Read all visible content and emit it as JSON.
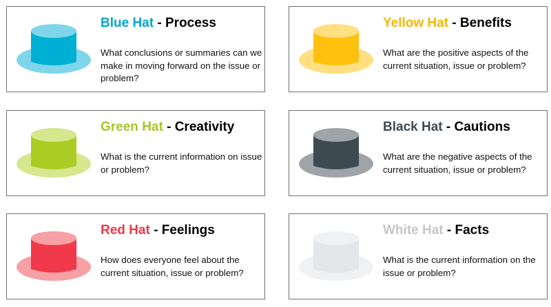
{
  "hats": [
    {
      "name": "Blue Hat",
      "separator": " - ",
      "topic": "Process",
      "description": "What conclusions or summaries can we make in moving forward on the issue or problem?",
      "icon": "hat-icon",
      "title_color": "#00a8cc",
      "crown_color": "#00b0d4",
      "brim_color": "#7fd6ea"
    },
    {
      "name": "Yellow Hat",
      "separator": " - ",
      "topic": "Benefits",
      "description": "What are the positive aspects of the current situation, issue or problem?",
      "icon": "hat-icon",
      "title_color": "#f5b800",
      "crown_color": "#ffc10e",
      "brim_color": "#ffdf80"
    },
    {
      "name": "Green Hat",
      "separator": " - ",
      "topic": "Creativity",
      "description": "What is the current information on issue or problem?",
      "icon": "hat-icon",
      "title_color": "#a6c726",
      "crown_color": "#abcc22",
      "brim_color": "#d6e78e"
    },
    {
      "name": "Black Hat",
      "separator": " - ",
      "topic": "Cautions",
      "description": "What are the negative aspects of the current situation, issue or problem?",
      "icon": "hat-icon",
      "title_color": "#3f4a52",
      "crown_color": "#3d4a52",
      "brim_color": "#9ea4a8"
    },
    {
      "name": "Red Hat",
      "separator": " - ",
      "topic": "Feelings",
      "description": "How does everyone feel about the current situation, issue or problem?",
      "icon": "hat-icon",
      "title_color": "#e8394a",
      "crown_color": "#f0394a",
      "brim_color": "#f7a0a5"
    },
    {
      "name": "White Hat",
      "separator": " - ",
      "topic": "Facts",
      "description": "What is the current information on the issue or problem?",
      "icon": "hat-icon",
      "title_color": "#c4c6c8",
      "crown_color": "#e4e7e9",
      "brim_color": "#eff1f3"
    }
  ]
}
